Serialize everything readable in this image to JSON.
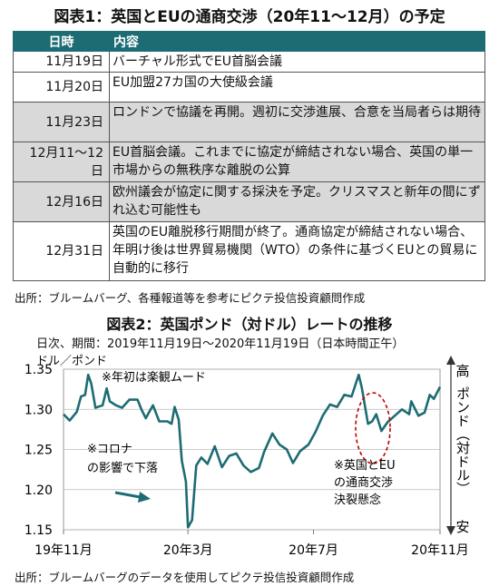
{
  "table": {
    "title": "図表1：英国とEUの通商交渉（20年11～12月）の予定",
    "headers": [
      "日時",
      "内容"
    ],
    "rows": [
      {
        "date": "11月19日",
        "content": "バーチャル形式でEU首脳会議",
        "shaded": false
      },
      {
        "date": "11月20日",
        "content": "EU加盟27カ国の大使級会議",
        "shaded": false
      },
      {
        "date": "11月23日",
        "content": "ロンドンで協議を再開。週初に交渉進展、合意を当局者らは期待",
        "shaded": true
      },
      {
        "date": "12月11～12日",
        "content": "EU首脳会議。これまでに協定が締結されない場合、英国の単一市場からの無秩序な離脱の公算",
        "shaded": true
      },
      {
        "date": "12月16日",
        "content": "欧州議会が協定に関する採決を予定。クリスマスと新年の間にずれ込む可能性も",
        "shaded": true
      },
      {
        "date": "12月31日",
        "content": "英国のEU離脱移行期間が終了。通商協定が締結されない場合、年明け後は世界貿易機関（WTO）の条件に基づくEUとの貿易に自動的に移行",
        "shaded": false
      }
    ],
    "source": "出所：ブルームバーグ、各種報道等を参考にピクテ投信投資顧問作成"
  },
  "chart_data": {
    "type": "line",
    "title": "図表2：英国ポンド（対ドル）レートの推移",
    "subtitle": "日次、期間：2019年11月19日～2020年11月19日（日本時間正午）",
    "ylabel": "ドル／ポンド",
    "ylim": [
      1.15,
      1.35
    ],
    "yticks": [
      "1.35",
      "1.30",
      "1.25",
      "1.20",
      "1.15"
    ],
    "xticks": [
      "19年11月",
      "20年3月",
      "20年7月",
      "20年11月"
    ],
    "xlim": [
      "2019-11-19",
      "2020-11-19"
    ],
    "right_axis": {
      "top": "高",
      "label": "ポンド（対ドル）",
      "bottom": "安"
    },
    "annotations": [
      "※年初は楽観ムード",
      "※コロナの影響で下落",
      "※英国とEUの通商交渉決裂懸念"
    ],
    "series": [
      {
        "values": [
          [
            "2019-11-19",
            1.294
          ],
          [
            "2019-11-25",
            1.286
          ],
          [
            "2019-12-02",
            1.297
          ],
          [
            "2019-12-06",
            1.316
          ],
          [
            "2019-12-10",
            1.318
          ],
          [
            "2019-12-13",
            1.343
          ],
          [
            "2019-12-16",
            1.332
          ],
          [
            "2019-12-20",
            1.302
          ],
          [
            "2019-12-27",
            1.305
          ],
          [
            "2019-12-31",
            1.326
          ],
          [
            "2020-01-03",
            1.31
          ],
          [
            "2020-01-09",
            1.305
          ],
          [
            "2020-01-15",
            1.302
          ],
          [
            "2020-01-22",
            1.312
          ],
          [
            "2020-01-30",
            1.312
          ],
          [
            "2020-02-03",
            1.299
          ],
          [
            "2020-02-07",
            1.289
          ],
          [
            "2020-02-14",
            1.305
          ],
          [
            "2020-02-20",
            1.285
          ],
          [
            "2020-02-28",
            1.285
          ],
          [
            "2020-03-03",
            1.282
          ],
          [
            "2020-03-06",
            1.303
          ],
          [
            "2020-03-10",
            1.287
          ],
          [
            "2020-03-13",
            1.236
          ],
          [
            "2020-03-17",
            1.21
          ],
          [
            "2020-03-19",
            1.153
          ],
          [
            "2020-03-23",
            1.162
          ],
          [
            "2020-03-27",
            1.23
          ],
          [
            "2020-04-01",
            1.24
          ],
          [
            "2020-04-07",
            1.232
          ],
          [
            "2020-04-14",
            1.254
          ],
          [
            "2020-04-21",
            1.228
          ],
          [
            "2020-04-28",
            1.242
          ],
          [
            "2020-05-05",
            1.245
          ],
          [
            "2020-05-12",
            1.23
          ],
          [
            "2020-05-19",
            1.222
          ],
          [
            "2020-05-27",
            1.227
          ],
          [
            "2020-06-01",
            1.247
          ],
          [
            "2020-06-09",
            1.27
          ],
          [
            "2020-06-16",
            1.256
          ],
          [
            "2020-06-23",
            1.25
          ],
          [
            "2020-06-29",
            1.233
          ],
          [
            "2020-07-06",
            1.248
          ],
          [
            "2020-07-14",
            1.256
          ],
          [
            "2020-07-21",
            1.272
          ],
          [
            "2020-07-28",
            1.292
          ],
          [
            "2020-08-04",
            1.306
          ],
          [
            "2020-08-11",
            1.303
          ],
          [
            "2020-08-18",
            1.318
          ],
          [
            "2020-08-25",
            1.316
          ],
          [
            "2020-09-01",
            1.343
          ],
          [
            "2020-09-04",
            1.327
          ],
          [
            "2020-09-10",
            1.282
          ],
          [
            "2020-09-14",
            1.285
          ],
          [
            "2020-09-18",
            1.294
          ],
          [
            "2020-09-23",
            1.273
          ],
          [
            "2020-09-29",
            1.284
          ],
          [
            "2020-10-06",
            1.292
          ],
          [
            "2020-10-13",
            1.3
          ],
          [
            "2020-10-20",
            1.294
          ],
          [
            "2020-10-22",
            1.31
          ],
          [
            "2020-10-29",
            1.292
          ],
          [
            "2020-11-04",
            1.296
          ],
          [
            "2020-11-09",
            1.318
          ],
          [
            "2020-11-13",
            1.313
          ],
          [
            "2020-11-19",
            1.328
          ]
        ]
      }
    ]
  },
  "chart_source": "出所：ブルームバーグのデータを使用してピクテ投信投資顧問作成"
}
